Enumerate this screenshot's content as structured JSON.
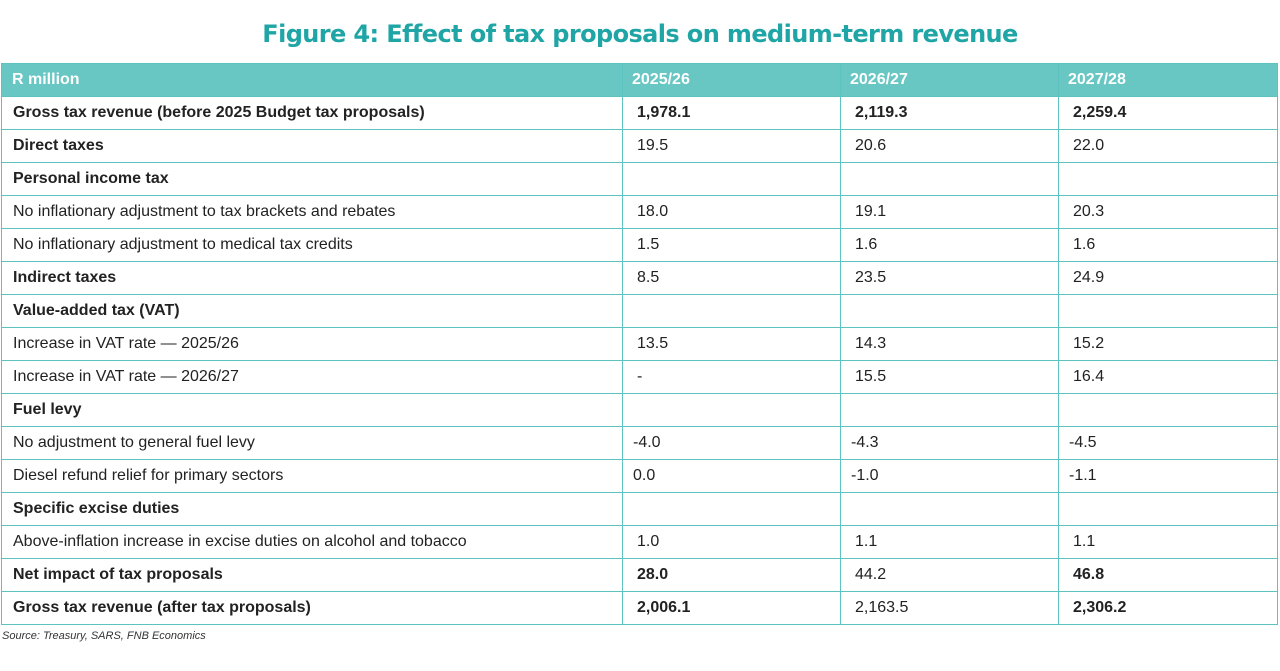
{
  "title": "Figure 4: Effect of tax proposals on medium-term revenue",
  "table": {
    "headers": [
      "R million",
      "2025/26",
      "2026/27",
      "2027/28"
    ],
    "rows": {
      "gross_before": {
        "label": "Gross tax revenue (before 2025 Budget tax proposals)",
        "v1": "1,978.1",
        "v2": "2,119.3",
        "v3": "2,259.4"
      },
      "direct": {
        "label": "Direct taxes",
        "v1": "19.5",
        "v2": "20.6",
        "v3": "22.0"
      },
      "pit": {
        "label": "Personal income tax",
        "v1": "",
        "v2": "",
        "v3": ""
      },
      "brackets": {
        "label": "No inflationary adjustment to tax brackets and  rebates",
        "v1": "18.0",
        "v2": "19.1",
        "v3": "20.3"
      },
      "medical": {
        "label": "No inflationary adjustment to medical tax credits",
        "v1": "1.5",
        "v2": "1.6",
        "v3": "1.6"
      },
      "indirect": {
        "label": "Indirect taxes",
        "v1": "8.5",
        "v2": "23.5",
        "v3": "24.9"
      },
      "vat": {
        "label": "Value-added tax (VAT)",
        "v1": "",
        "v2": "",
        "v3": ""
      },
      "vat_2526": {
        "label": "Increase in VAT rate — 2025/26",
        "v1": "13.5",
        "v2": "14.3",
        "v3": "15.2"
      },
      "vat_2627": {
        "label": "Increase in VAT rate — 2026/27",
        "v1": "-",
        "v2": "15.5",
        "v3": "16.4"
      },
      "fuel": {
        "label": "Fuel levy",
        "v1": "",
        "v2": "",
        "v3": ""
      },
      "fuel_adj": {
        "label": "No adjustment to general fuel levy",
        "v1": "-4.0",
        "v2": "-4.3",
        "v3": "-4.5"
      },
      "diesel": {
        "label": "Diesel refund relief for primary sectors",
        "v1": "0.0",
        "v2": "-1.0",
        "v3": "-1.1"
      },
      "excise": {
        "label": "Specific excise duties",
        "v1": "",
        "v2": "",
        "v3": ""
      },
      "alcohol": {
        "label": "Above-inflation increase in excise duties on alcohol and tobacco",
        "v1": "1.0",
        "v2": "1.1",
        "v3": "1.1"
      },
      "net": {
        "label": "Net impact of tax proposals",
        "v1": "28.0",
        "v2": "44.2",
        "v3": "46.8"
      },
      "gross_after": {
        "label": "Gross tax revenue (after tax proposals)",
        "v1": "2,006.1",
        "v2": "2,163.5",
        "v3": "2,306.2"
      }
    }
  },
  "source": "Source: Treasury, SARS, FNB Economics",
  "colors": {
    "accent": "#1fa5a5",
    "header_bg": "#68c6c3",
    "border": "#5cc3c0"
  }
}
